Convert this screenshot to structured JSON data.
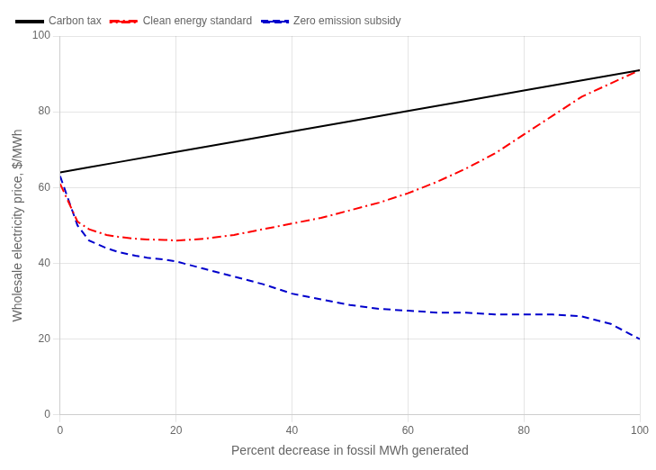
{
  "chart_data": {
    "type": "line",
    "xlabel": "Percent decrease in fossil MWh generated",
    "ylabel": "Wholesale electricity price, $/MWh",
    "xlim": [
      0,
      100
    ],
    "ylim": [
      0,
      100
    ],
    "xticks": [
      0,
      20,
      40,
      60,
      80,
      100
    ],
    "yticks": [
      0,
      20,
      40,
      60,
      80,
      100
    ],
    "grid": true,
    "legend": "upper left",
    "series": [
      {
        "name": "Carbon tax",
        "color": "#000000",
        "line_style": "solid",
        "x": [
          0,
          5,
          10,
          20,
          30,
          40,
          50,
          60,
          70,
          80,
          90,
          100
        ],
        "values": [
          64.0,
          65.35,
          66.7,
          69.4,
          72.1,
          74.8,
          77.5,
          80.2,
          82.9,
          85.6,
          88.3,
          91.0
        ]
      },
      {
        "name": "Clean energy standard",
        "color": "#ff0000",
        "line_style": "dashdot",
        "x": [
          0,
          3,
          5,
          8,
          10,
          13,
          15,
          18,
          20,
          25,
          30,
          35,
          40,
          45,
          50,
          55,
          60,
          65,
          70,
          75,
          80,
          85,
          90,
          95,
          100
        ],
        "values": [
          61,
          51,
          49,
          47.5,
          47,
          46.5,
          46.3,
          46.2,
          46.0,
          46.5,
          47.5,
          49.0,
          50.5,
          52.0,
          54.0,
          56.0,
          58.5,
          61.5,
          65.0,
          69.0,
          74.0,
          79.0,
          84.0,
          87.5,
          91.0
        ]
      },
      {
        "name": "Zero emission subsidy",
        "color": "#0000cc",
        "line_style": "dashed",
        "x": [
          0,
          3,
          5,
          8,
          10,
          13,
          15,
          18,
          20,
          25,
          30,
          35,
          40,
          45,
          50,
          55,
          60,
          65,
          70,
          75,
          80,
          85,
          90,
          95,
          100
        ],
        "values": [
          63,
          50,
          46,
          44,
          43,
          42,
          41.5,
          41,
          40.5,
          38.5,
          36.5,
          34.5,
          32.0,
          30.5,
          29.0,
          28.0,
          27.5,
          27.0,
          27.0,
          26.5,
          26.5,
          26.5,
          26.0,
          24.0,
          20.0
        ]
      }
    ]
  }
}
